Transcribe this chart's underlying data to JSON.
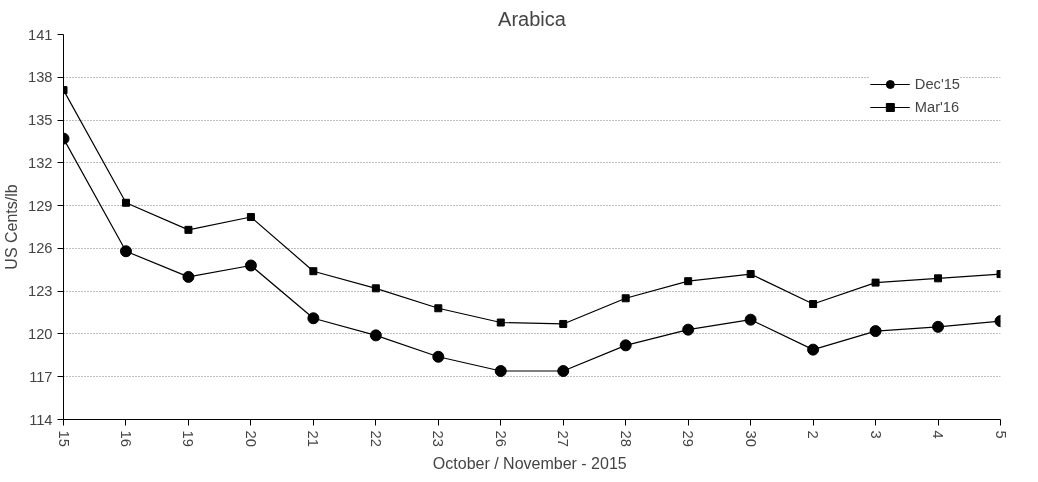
{
  "chart_data": {
    "type": "line",
    "title": "Arabica",
    "xlabel": "October  / November - 2015",
    "ylabel": "US Cents/lb",
    "categories": [
      "15",
      "16",
      "19",
      "20",
      "21",
      "22",
      "23",
      "26",
      "27",
      "28",
      "29",
      "30",
      "2",
      "3",
      "4",
      "5"
    ],
    "series": [
      {
        "name": "Dec'15",
        "color": "#000000",
        "marker": "circle",
        "values": [
          133.7,
          125.8,
          124.0,
          124.8,
          121.1,
          119.9,
          118.4,
          117.4,
          117.4,
          119.2,
          120.3,
          121.0,
          118.9,
          120.2,
          120.5,
          120.9
        ]
      },
      {
        "name": "Mar'16",
        "color": "#000000",
        "marker": "square",
        "values": [
          137.1,
          129.2,
          127.3,
          128.2,
          124.4,
          123.2,
          121.8,
          120.8,
          120.7,
          122.5,
          123.7,
          124.2,
          122.1,
          123.6,
          123.9,
          124.2
        ]
      }
    ],
    "ylim": [
      114,
      141
    ],
    "yticks": [
      114,
      117,
      120,
      123,
      126,
      129,
      132,
      135,
      138,
      141
    ],
    "grid": "y",
    "legend": "top right",
    "line_style": "solid"
  }
}
